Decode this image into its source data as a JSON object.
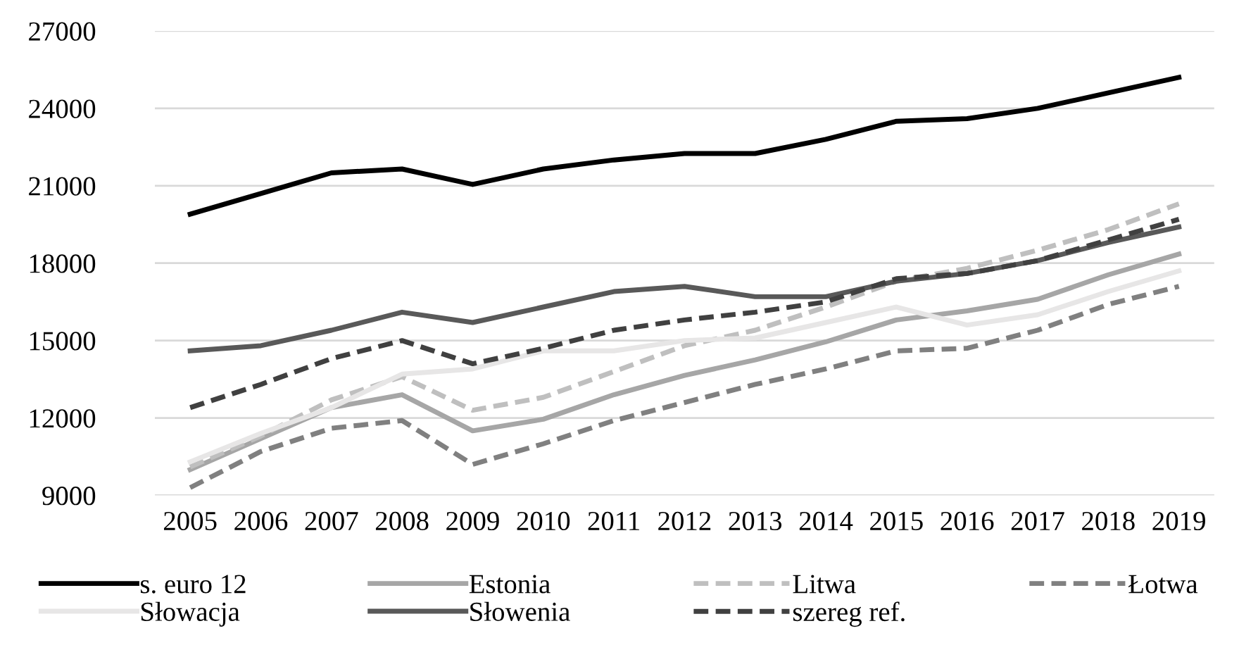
{
  "chart_data": {
    "type": "line",
    "categories": [
      "2005",
      "2006",
      "2007",
      "2008",
      "2009",
      "2010",
      "2011",
      "2012",
      "2013",
      "2014",
      "2015",
      "2016",
      "2017",
      "2018",
      "2019"
    ],
    "ylim": [
      9000,
      27000
    ],
    "yticks": [
      9000,
      12000,
      15000,
      18000,
      21000,
      24000,
      27000
    ],
    "grid": "y",
    "legend": "bottom",
    "series": [
      {
        "name": "s. euro 12",
        "color": "#000000",
        "line_style": "solid",
        "values": [
          19900,
          20700,
          21500,
          21650,
          21050,
          21650,
          22000,
          22250,
          22250,
          22800,
          23500,
          23600,
          24000,
          24600,
          25200
        ]
      },
      {
        "name": "Estonia",
        "color": "#a6a6a6",
        "line_style": "solid",
        "values": [
          10000,
          11200,
          12400,
          12900,
          11500,
          11950,
          12900,
          13650,
          14250,
          14950,
          15800,
          16150,
          16600,
          17550,
          18350
        ]
      },
      {
        "name": "Litwa",
        "color": "#bfbfbf",
        "line_style": "dashed",
        "values": [
          10100,
          11300,
          12700,
          13600,
          12300,
          12800,
          13800,
          14800,
          15400,
          16300,
          17300,
          17800,
          18500,
          19300,
          20300
        ]
      },
      {
        "name": "Łotwa",
        "color": "#808080",
        "line_style": "dashed",
        "values": [
          9300,
          10700,
          11600,
          11900,
          10200,
          11000,
          11900,
          12600,
          13300,
          13900,
          14600,
          14700,
          15400,
          16400,
          17100
        ]
      },
      {
        "name": "Słowacja",
        "color": "#e7e6e6",
        "line_style": "solid",
        "values": [
          10300,
          11400,
          12400,
          13700,
          13900,
          14600,
          14600,
          15000,
          15100,
          15700,
          16300,
          15600,
          16000,
          16900,
          17700
        ]
      },
      {
        "name": "Słowenia",
        "color": "#595959",
        "line_style": "solid",
        "values": [
          14600,
          14800,
          15400,
          16100,
          15700,
          16300,
          16900,
          17100,
          16700,
          16700,
          17300,
          17600,
          18100,
          18800,
          19400
        ]
      },
      {
        "name": "szereg ref.",
        "color": "#404040",
        "line_style": "dashed",
        "values": [
          12400,
          13300,
          14300,
          15000,
          14100,
          14700,
          15400,
          15800,
          16100,
          16500,
          17400,
          17600,
          18100,
          18900,
          19700
        ]
      }
    ]
  }
}
